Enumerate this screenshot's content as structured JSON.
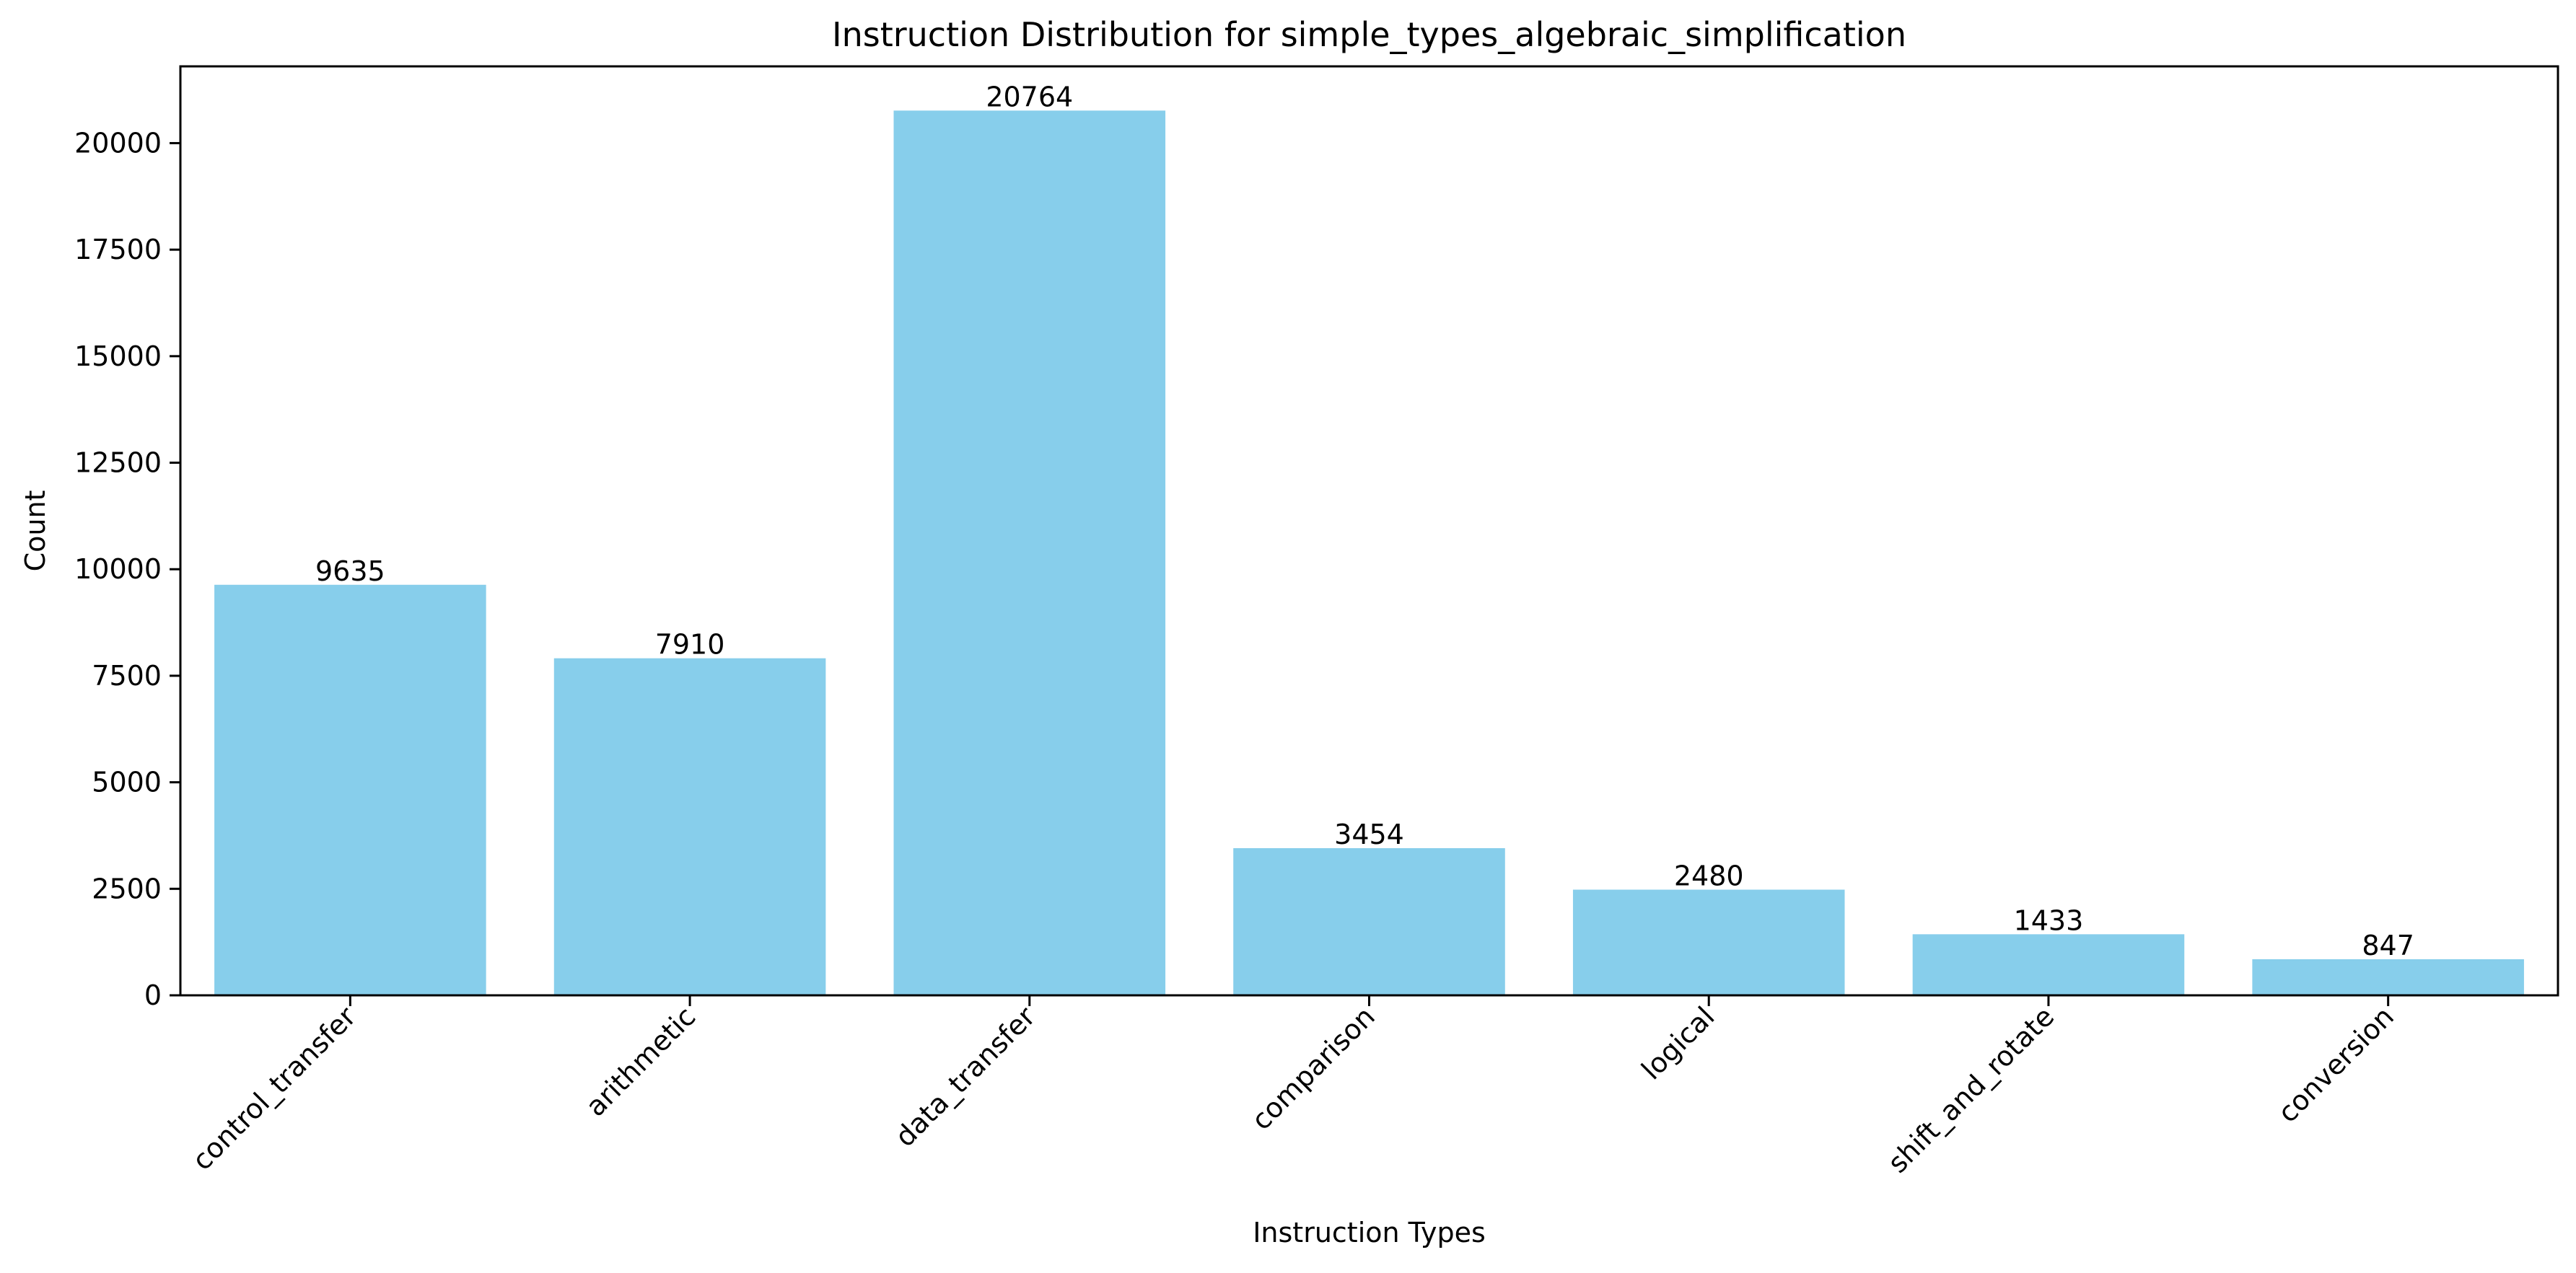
{
  "chart_data": {
    "type": "bar",
    "title": "Instruction Distribution for simple_types_algebraic_simplification",
    "xlabel": "Instruction Types",
    "ylabel": "Count",
    "categories": [
      "control_transfer",
      "arithmetic",
      "data_transfer",
      "comparison",
      "logical",
      "shift_and_rotate",
      "conversion"
    ],
    "values": [
      9635,
      7910,
      20764,
      3454,
      2480,
      1433,
      847
    ],
    "data_labels": [
      "9635",
      "7910",
      "20764",
      "3454",
      "2480",
      "1433",
      "847"
    ],
    "ylim": [
      0,
      21802
    ],
    "yticks": [
      0,
      2500,
      5000,
      7500,
      10000,
      12500,
      15000,
      17500,
      20000
    ],
    "ytick_labels": [
      "0",
      "2500",
      "5000",
      "7500",
      "10000",
      "12500",
      "15000",
      "17500",
      "20000"
    ],
    "grid": false,
    "legend": "none",
    "bar_color": "#87CEEB",
    "axis_color": "#000000",
    "xtick_rotation": 45
  }
}
